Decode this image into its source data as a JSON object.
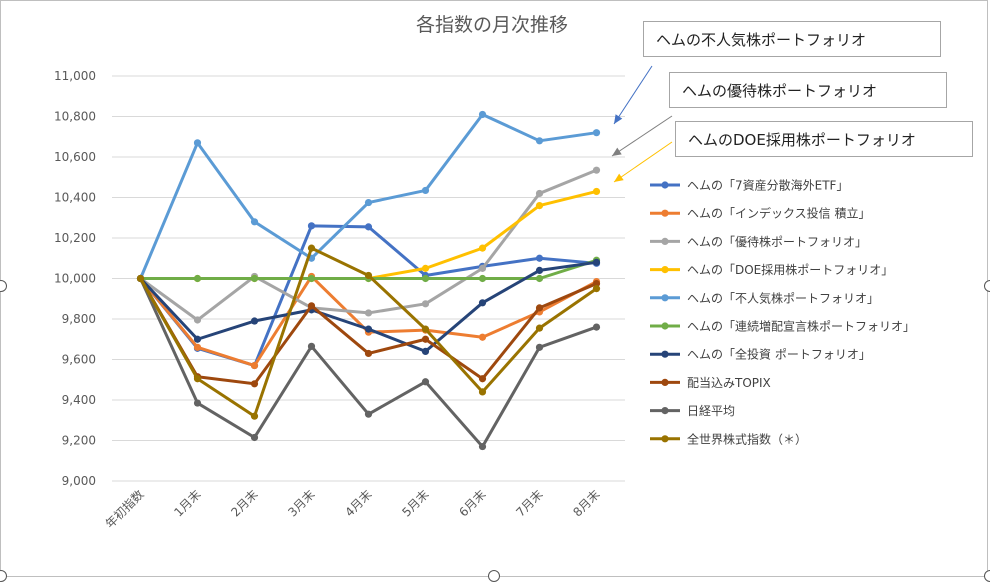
{
  "chart_data": {
    "type": "line",
    "title": "各指数の月次推移",
    "categories": [
      "年初指数",
      "1月末",
      "2月末",
      "3月末",
      "4月末",
      "5月末",
      "6月末",
      "7月末",
      "8月末"
    ],
    "ylim": [
      9000,
      11000
    ],
    "yticks": [
      "9,000",
      "9,200",
      "9,400",
      "9,600",
      "9,800",
      "10,000",
      "10,200",
      "10,400",
      "10,600",
      "10,800",
      "11,000"
    ],
    "grid": true,
    "legend_position": "right",
    "series": [
      {
        "name": "ヘムの「7資産分散海外ETF」",
        "color": "#4472c4",
        "values": [
          10000,
          9655,
          9570,
          10260,
          10255,
          10015,
          10060,
          10100,
          10075
        ]
      },
      {
        "name": "ヘムの「インデックス投信 積立」",
        "color": "#ed7d31",
        "values": [
          10000,
          9660,
          9570,
          10010,
          9735,
          9745,
          9710,
          9835,
          9985
        ]
      },
      {
        "name": "ヘムの「優待株ポートフォリオ」",
        "color": "#a5a5a5",
        "values": [
          10000,
          9795,
          10010,
          9855,
          9830,
          9875,
          10050,
          10420,
          10535
        ]
      },
      {
        "name": "ヘムの「DOE採用株ポートフォリオ」",
        "color": "#ffc000",
        "values": [
          10000,
          10000,
          10000,
          10000,
          10000,
          10050,
          10150,
          10360,
          10430
        ]
      },
      {
        "name": "ヘムの「不人気株ポートフォリオ」",
        "color": "#5b9bd5",
        "values": [
          10000,
          10670,
          10280,
          10100,
          10375,
          10435,
          10810,
          10680,
          10720
        ]
      },
      {
        "name": "ヘムの「連続増配宣言株ポートフォリオ」",
        "color": "#70ad47",
        "values": [
          10000,
          10000,
          10000,
          10000,
          10000,
          10000,
          10000,
          10000,
          10090
        ]
      },
      {
        "name": "ヘムの「全投資 ポートフォリオ」",
        "color": "#264478",
        "values": [
          10000,
          9700,
          9790,
          9845,
          9750,
          9640,
          9880,
          10040,
          10080
        ]
      },
      {
        "name": "配当込みTOPIX",
        "color": "#9e480e",
        "values": [
          10000,
          9515,
          9480,
          9865,
          9630,
          9700,
          9505,
          9855,
          9975
        ]
      },
      {
        "name": "日経平均",
        "color": "#636363",
        "values": [
          10000,
          9385,
          9215,
          9665,
          9330,
          9490,
          9170,
          9660,
          9760
        ]
      },
      {
        "name": "全世界株式指数（＊）",
        "color": "#997300",
        "values": [
          10000,
          9505,
          9320,
          10150,
          10015,
          9750,
          9440,
          9755,
          9950
        ]
      }
    ]
  },
  "callouts": [
    {
      "label": "ヘムの不人気株ポートフォリオ",
      "arrow_color": "#4472c4"
    },
    {
      "label": "ヘムの優待株ポートフォリオ",
      "arrow_color": "#7f7f7f"
    },
    {
      "label": "ヘムのDOE採用株ポートフォリオ",
      "arrow_color": "#ffc000"
    }
  ],
  "colors": {
    "grid": "#d9d9d9",
    "frame": "#bfbfbf",
    "text": "#595959"
  }
}
